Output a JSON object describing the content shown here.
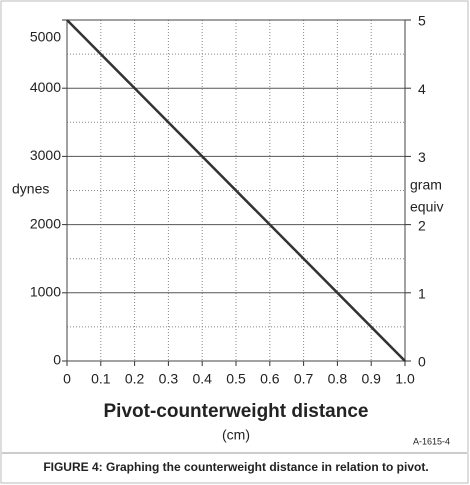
{
  "chart_data": {
    "type": "line",
    "x_label": "Pivot-counterweight distance",
    "x_unit": "(cm)",
    "y_label": "dynes",
    "y2_label": [
      "gram",
      "equiv"
    ],
    "figure_code": "A-1615-4",
    "caption": "FIGURE 4: Graphing the counterweight distance in relation to pivot.",
    "x": [
      0,
      1
    ],
    "series": [
      {
        "color": "#333333",
        "values": [
          5000,
          0
        ]
      }
    ],
    "xlim": [
      0,
      1
    ],
    "xticks": [
      0,
      0.1,
      0.2,
      0.3,
      0.4,
      0.5,
      0.6,
      0.7,
      0.8,
      0.9,
      {
        "value": 1,
        "label": "1.0"
      }
    ],
    "ylim": [
      0,
      5000
    ],
    "yticks": [
      0,
      1000,
      2000,
      3000,
      4000,
      5000
    ],
    "yminor": [
      500,
      1500,
      2500,
      3500,
      4500
    ],
    "y2lim": [
      0,
      5
    ],
    "y2ticks": [
      0,
      1,
      2,
      3,
      4,
      5
    ],
    "grid": true
  }
}
